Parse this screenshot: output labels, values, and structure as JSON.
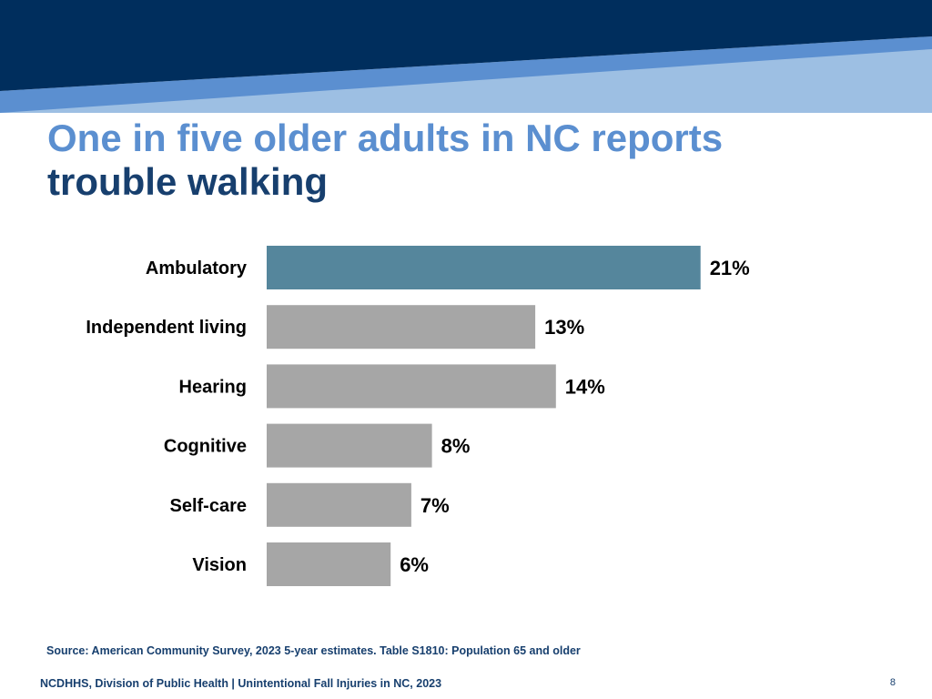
{
  "title": {
    "line1": "One in five older adults in NC reports",
    "line2": "trouble walking"
  },
  "chart_data": {
    "type": "bar",
    "orientation": "horizontal",
    "categories": [
      "Ambulatory",
      "Independent living",
      "Hearing",
      "Cognitive",
      "Self-care",
      "Vision"
    ],
    "values": [
      21,
      13,
      14,
      8,
      7,
      6
    ],
    "labels": [
      "21%",
      "13%",
      "14%",
      "8%",
      "7%",
      "6%"
    ],
    "unit": "%",
    "highlight_index": 0,
    "colors": {
      "highlight": "#55869c",
      "default": "#a6a6a6",
      "label": "#000000"
    },
    "grid": false,
    "legend": "none"
  },
  "source": "Source: American Community Survey, 2023 5-year estimates. Table S1810: Population 65 and older",
  "footer": "NCDHHS, Division of Public Health | Unintentional Fall Injuries in NC, 2023",
  "page_number": "8",
  "colors": {
    "banner_dark": "#002e5d",
    "banner_mid": "#5b8fd0",
    "banner_light": "#9dbfe3",
    "title_light": "#5b8fd0",
    "title_dark": "#173f6e"
  }
}
